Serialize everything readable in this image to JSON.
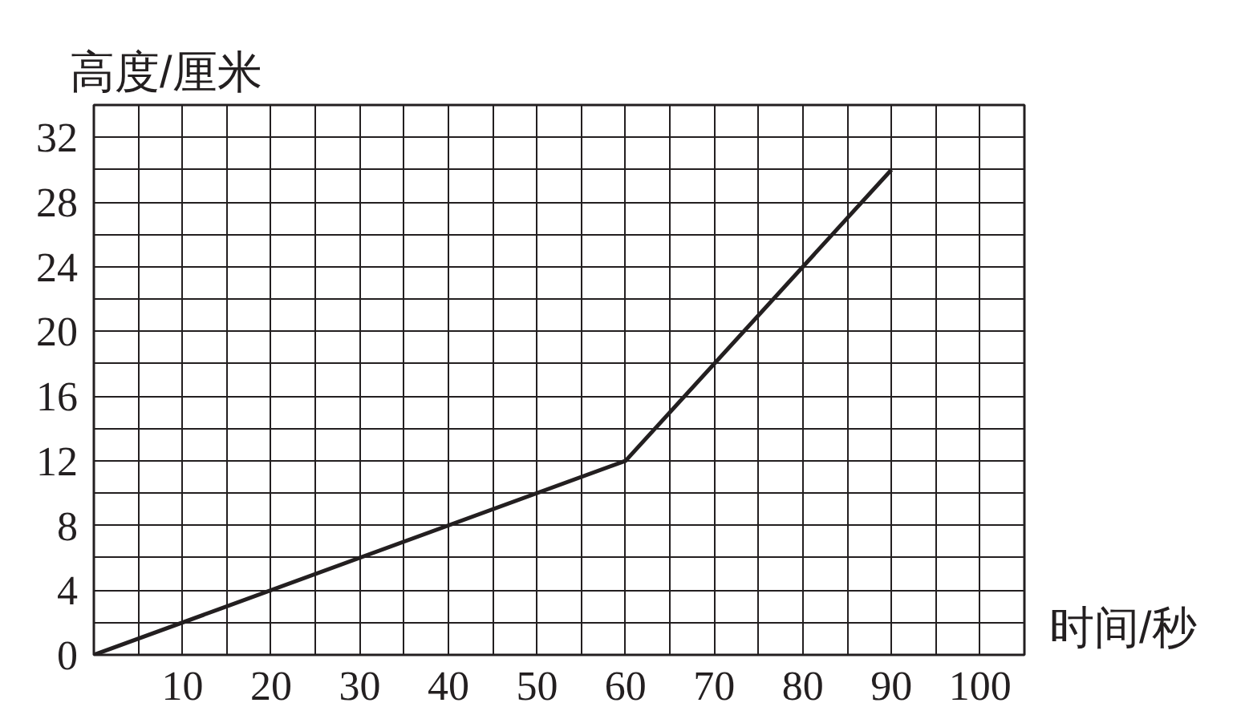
{
  "chart_data": {
    "type": "line",
    "xlabel": "时间/秒",
    "ylabel": "高度/厘米",
    "x": [
      0,
      60,
      90
    ],
    "series": [
      {
        "color": "#231f20",
        "values": [
          0,
          12,
          30
        ]
      }
    ],
    "xlim": [
      0,
      105
    ],
    "ylim": [
      0,
      34
    ],
    "xticks": [
      10,
      20,
      30,
      40,
      50,
      60,
      70,
      80,
      90,
      100
    ],
    "yticks": [
      0,
      4,
      8,
      12,
      16,
      20,
      24,
      28,
      32
    ],
    "grid": true,
    "line_style": "solid"
  }
}
